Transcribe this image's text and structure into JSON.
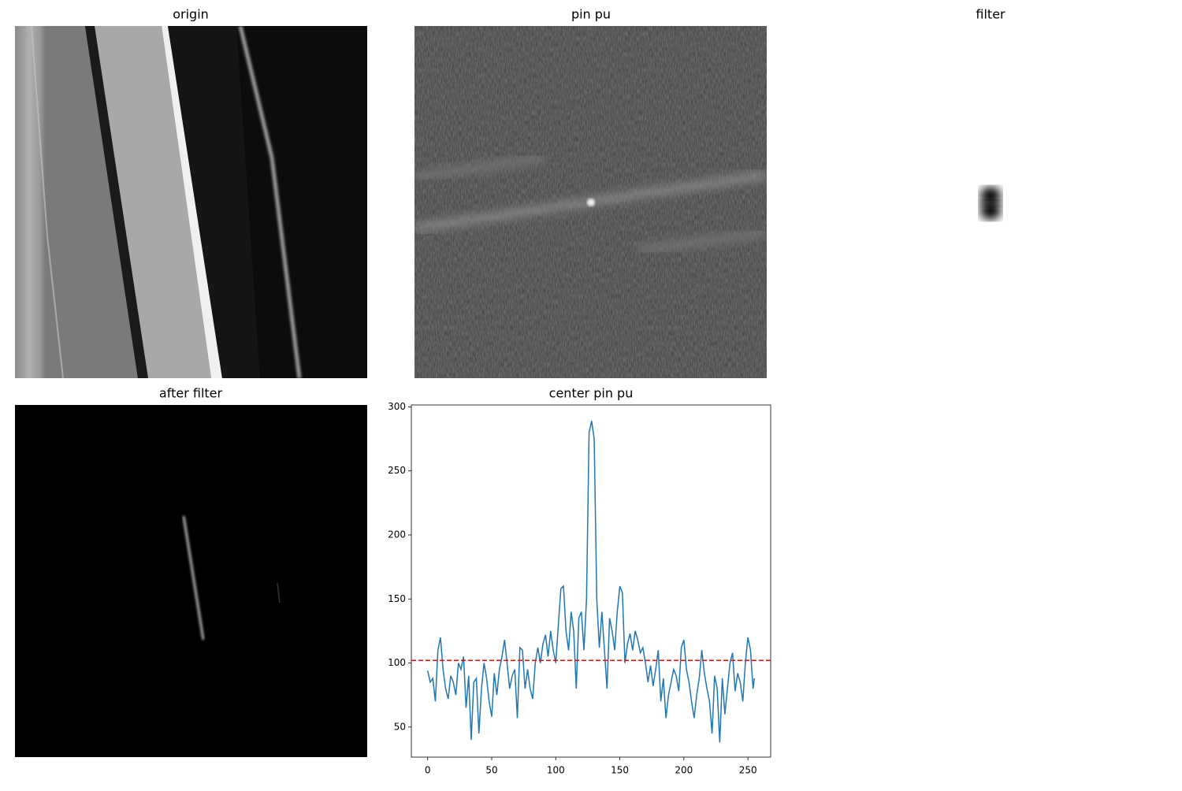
{
  "chart_data": [
    {
      "type": "image",
      "title": "origin"
    },
    {
      "type": "image",
      "title": "pin pu"
    },
    {
      "type": "image",
      "title": "filter"
    },
    {
      "type": "image",
      "title": "after filter"
    },
    {
      "type": "line",
      "title": "center pin pu",
      "color": "#1f77b4",
      "x": [
        0,
        2,
        4,
        6,
        8,
        10,
        12,
        14,
        16,
        18,
        20,
        22,
        24,
        26,
        28,
        30,
        32,
        34,
        36,
        38,
        40,
        42,
        44,
        46,
        48,
        50,
        52,
        54,
        56,
        58,
        60,
        62,
        64,
        66,
        68,
        70,
        72,
        74,
        76,
        78,
        80,
        82,
        84,
        86,
        88,
        90,
        92,
        94,
        96,
        98,
        100,
        102,
        104,
        106,
        108,
        110,
        112,
        114,
        116,
        118,
        120,
        122,
        124,
        126,
        128,
        130,
        132,
        134,
        136,
        138,
        140,
        142,
        144,
        146,
        148,
        150,
        152,
        154,
        156,
        158,
        160,
        162,
        164,
        166,
        168,
        170,
        172,
        174,
        176,
        178,
        180,
        182,
        184,
        186,
        188,
        190,
        192,
        194,
        196,
        198,
        200,
        202,
        204,
        206,
        208,
        210,
        212,
        214,
        216,
        218,
        220,
        222,
        224,
        226,
        228,
        230,
        232,
        234,
        236,
        238,
        240,
        242,
        244,
        246,
        248,
        250,
        252,
        254,
        255
      ],
      "values": [
        94,
        85,
        88,
        70,
        110,
        120,
        95,
        80,
        72,
        90,
        85,
        75,
        100,
        95,
        105,
        65,
        90,
        40,
        85,
        88,
        45,
        80,
        100,
        88,
        70,
        58,
        92,
        75,
        95,
        105,
        118,
        100,
        80,
        90,
        95,
        57,
        112,
        110,
        80,
        95,
        80,
        72,
        100,
        112,
        100,
        115,
        122,
        105,
        125,
        110,
        100,
        130,
        158,
        160,
        125,
        110,
        140,
        125,
        80,
        135,
        140,
        110,
        150,
        280,
        289,
        275,
        150,
        112,
        140,
        110,
        80,
        135,
        125,
        110,
        140,
        160,
        155,
        100,
        115,
        123,
        110,
        125,
        118,
        108,
        112,
        100,
        85,
        98,
        82,
        95,
        110,
        70,
        88,
        57,
        75,
        85,
        95,
        90,
        78,
        112,
        118,
        95,
        85,
        70,
        57,
        75,
        88,
        110,
        92,
        80,
        70,
        45,
        90,
        80,
        38,
        88,
        60,
        80,
        100,
        108,
        78,
        92,
        85,
        70,
        100,
        120,
        110,
        80,
        88
      ],
      "hline": 102,
      "hline_color": "#ff0000",
      "xlim": [
        -12.75,
        267.75
      ],
      "ylim": [
        26.5,
        301.5
      ],
      "xticks": [
        0,
        50,
        100,
        150,
        200,
        250
      ],
      "yticks": [
        50,
        100,
        150,
        200,
        250,
        300
      ]
    }
  ]
}
